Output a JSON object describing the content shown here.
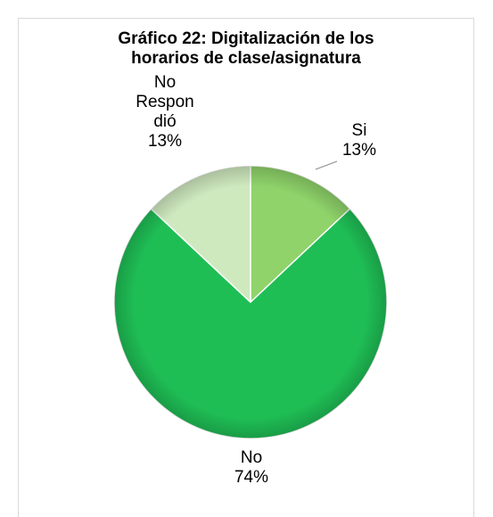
{
  "chart_data": {
    "type": "pie",
    "title_lines": [
      "Gráfico 22: Digitalización de los",
      "horarios de clase/asignatura"
    ],
    "slices": [
      {
        "label": "Si",
        "percent_label": "13%",
        "value": 13,
        "color": "#8fd36a"
      },
      {
        "label": "No",
        "percent_label": "74%",
        "value": 74,
        "color": "#1fbe55"
      },
      {
        "label_lines": [
          "No",
          "Respon",
          "dió"
        ],
        "percent_label": "13%",
        "value": 13,
        "color": "#cfe9bf"
      }
    ],
    "start_angle_deg": 0,
    "direction": "clockwise",
    "legend": "none"
  }
}
